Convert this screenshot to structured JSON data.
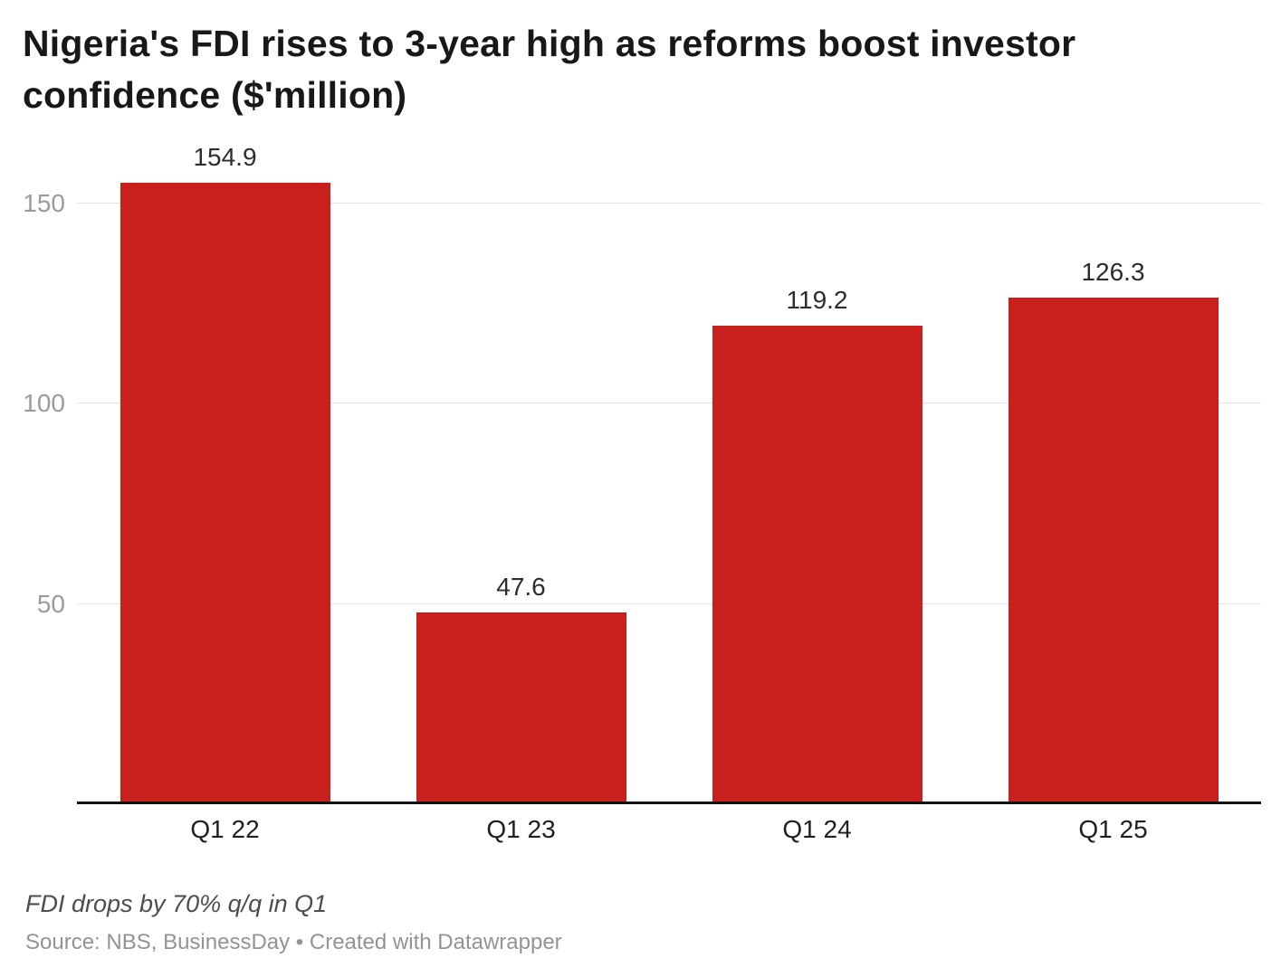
{
  "header": {
    "title": "Nigeria's FDI rises to 3-year high as reforms boost investor confidence ($'million)"
  },
  "chart_data": {
    "type": "bar",
    "title": "Nigeria's FDI rises to 3-year high as reforms boost investor confidence ($'million)",
    "categories": [
      "Q1 22",
      "Q1 23",
      "Q1 24",
      "Q1 25"
    ],
    "values": [
      154.9,
      47.6,
      119.2,
      126.3
    ],
    "value_labels": [
      "154.9",
      "47.6",
      "119.2",
      "126.3"
    ],
    "xlabel": "",
    "ylabel": "",
    "yticks": [
      50,
      100,
      150
    ],
    "ylim": [
      0,
      164.4
    ],
    "grid": "horizontal",
    "legend": "none",
    "bar_color": "#c7201d",
    "gridline_color": "#e2e2e2",
    "axis_line_color": "#111111",
    "ytick_color": "#9b9b9b"
  },
  "footer": {
    "note": "FDI drops by 70% q/q in Q1",
    "source": "Source: NBS, BusinessDay • Created with Datawrapper"
  }
}
